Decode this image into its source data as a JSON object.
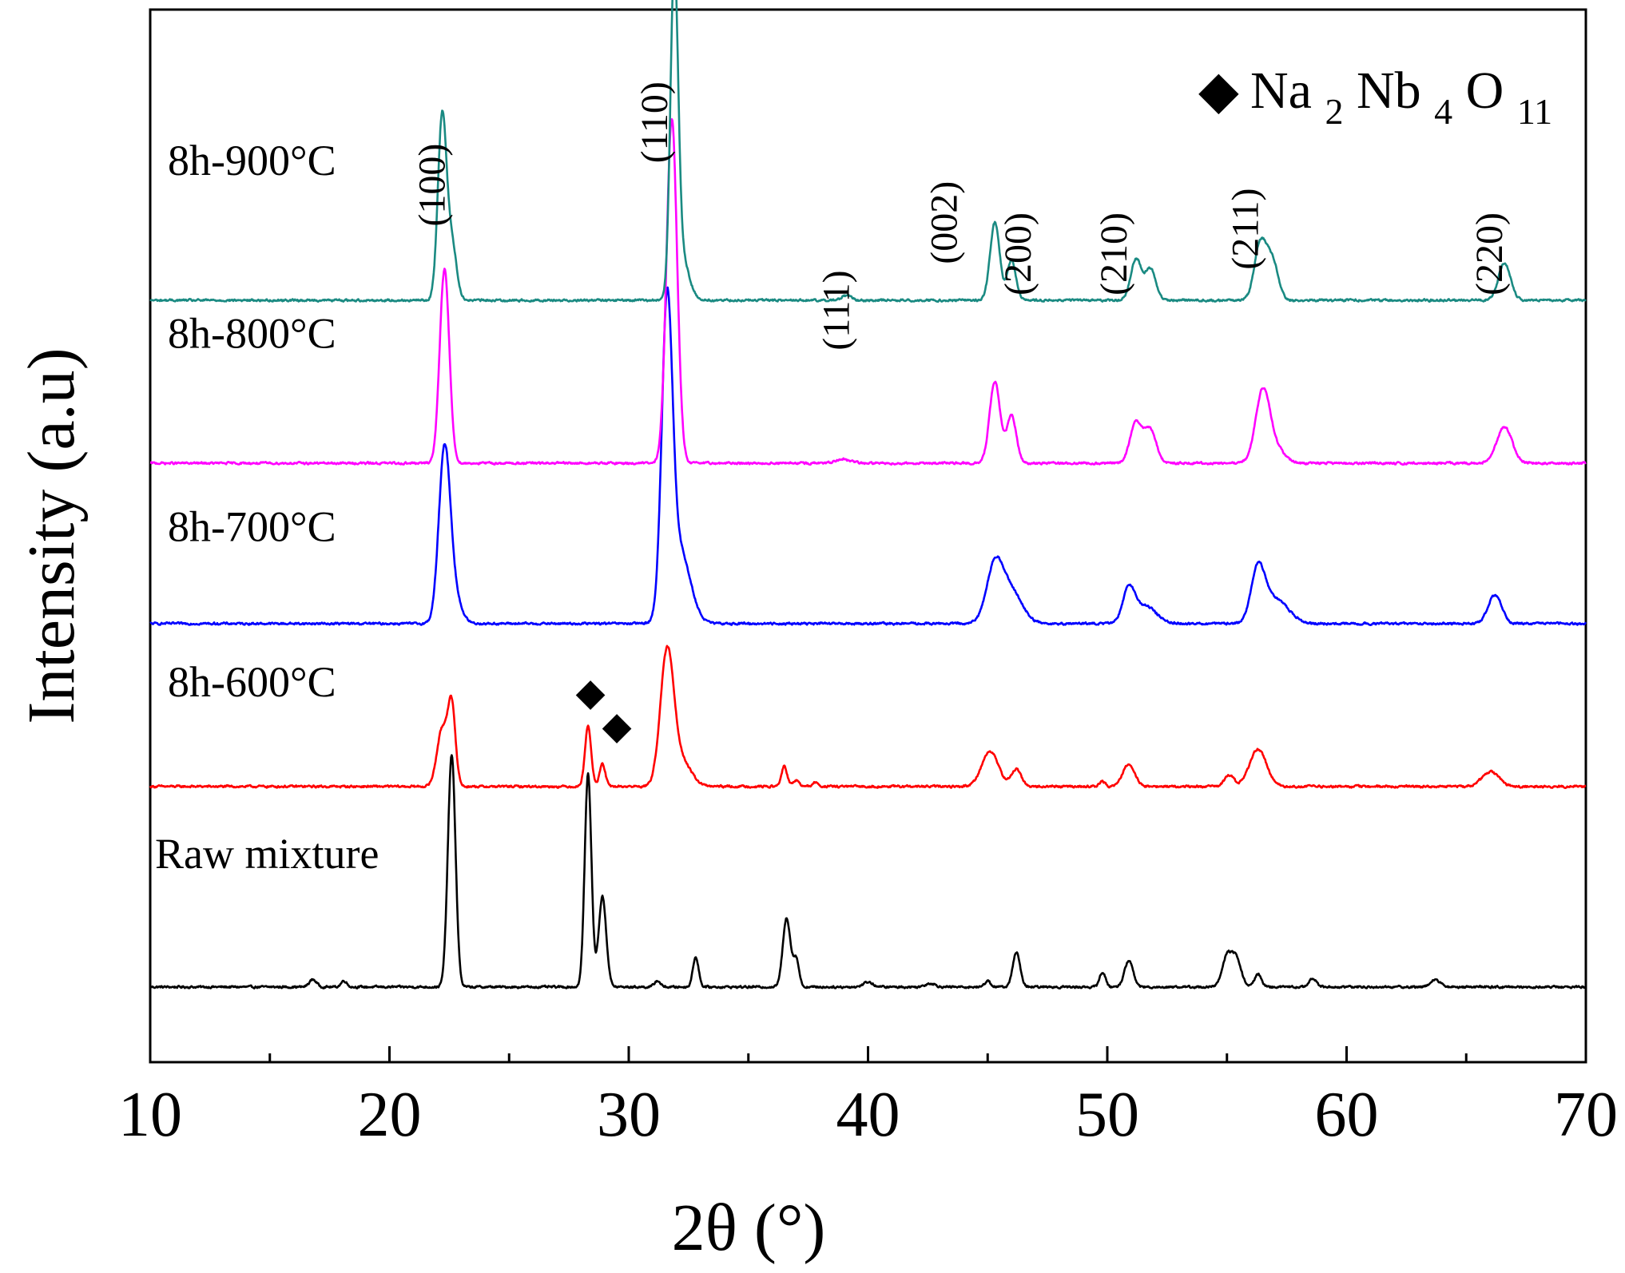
{
  "chart_data": {
    "type": "line",
    "title": "",
    "xlabel": "2θ (°)",
    "ylabel": "Intensity (a.u)",
    "xlim": [
      10,
      70
    ],
    "xticks": [
      10,
      20,
      30,
      40,
      50,
      60,
      70
    ],
    "xtick_labels": [
      "10",
      "20",
      "30",
      "40",
      "50",
      "60",
      "70"
    ],
    "yticks": [],
    "ylim": [
      0,
      8.4
    ],
    "grid": false,
    "legend": {
      "position": "top-right",
      "marker": "◆",
      "formula": [
        "Na",
        "2",
        "Nb",
        "4",
        "O",
        "11"
      ]
    },
    "series": [
      {
        "name": "Raw mixture",
        "color": "#000000",
        "baseline": 0.6,
        "peaks": [
          {
            "x": 16.8,
            "h": 0.06,
            "w": 0.15
          },
          {
            "x": 18.1,
            "h": 0.05,
            "w": 0.12
          },
          {
            "x": 22.6,
            "h": 1.85,
            "w": 0.16
          },
          {
            "x": 28.3,
            "h": 1.7,
            "w": 0.14
          },
          {
            "x": 28.9,
            "h": 0.72,
            "w": 0.16
          },
          {
            "x": 31.2,
            "h": 0.05,
            "w": 0.12
          },
          {
            "x": 32.8,
            "h": 0.24,
            "w": 0.12
          },
          {
            "x": 36.6,
            "h": 0.55,
            "w": 0.16
          },
          {
            "x": 37.0,
            "h": 0.22,
            "w": 0.12
          },
          {
            "x": 40.0,
            "h": 0.04,
            "w": 0.2
          },
          {
            "x": 42.6,
            "h": 0.03,
            "w": 0.2
          },
          {
            "x": 45.0,
            "h": 0.05,
            "w": 0.12
          },
          {
            "x": 46.2,
            "h": 0.28,
            "w": 0.15
          },
          {
            "x": 49.8,
            "h": 0.12,
            "w": 0.12
          },
          {
            "x": 50.9,
            "h": 0.21,
            "w": 0.18
          },
          {
            "x": 55.0,
            "h": 0.24,
            "w": 0.2
          },
          {
            "x": 55.4,
            "h": 0.22,
            "w": 0.2
          },
          {
            "x": 56.3,
            "h": 0.1,
            "w": 0.15
          },
          {
            "x": 58.6,
            "h": 0.07,
            "w": 0.15
          },
          {
            "x": 63.7,
            "h": 0.06,
            "w": 0.2
          }
        ]
      },
      {
        "name": "8h-600°C",
        "color": "#ff0000",
        "baseline": 2.2,
        "peaks": [
          {
            "x": 22.2,
            "h": 0.45,
            "w": 0.22
          },
          {
            "x": 22.6,
            "h": 0.62,
            "w": 0.16
          },
          {
            "x": 28.3,
            "h": 0.48,
            "w": 0.13
          },
          {
            "x": 28.9,
            "h": 0.18,
            "w": 0.12
          },
          {
            "x": 31.6,
            "h": 1.05,
            "w": 0.28
          },
          {
            "x": 32.2,
            "h": 0.2,
            "w": 0.4
          },
          {
            "x": 36.5,
            "h": 0.16,
            "w": 0.12
          },
          {
            "x": 37.0,
            "h": 0.05,
            "w": 0.12
          },
          {
            "x": 37.8,
            "h": 0.03,
            "w": 0.12
          },
          {
            "x": 45.1,
            "h": 0.28,
            "w": 0.35
          },
          {
            "x": 46.2,
            "h": 0.14,
            "w": 0.2
          },
          {
            "x": 49.8,
            "h": 0.04,
            "w": 0.12
          },
          {
            "x": 50.9,
            "h": 0.18,
            "w": 0.25
          },
          {
            "x": 55.1,
            "h": 0.09,
            "w": 0.2
          },
          {
            "x": 56.3,
            "h": 0.3,
            "w": 0.35
          },
          {
            "x": 66.0,
            "h": 0.12,
            "w": 0.35
          }
        ]
      },
      {
        "name": "8h-700°C",
        "color": "#0000ff",
        "baseline": 3.5,
        "peaks": [
          {
            "x": 22.3,
            "h": 1.35,
            "w": 0.24
          },
          {
            "x": 22.7,
            "h": 0.2,
            "w": 0.3
          },
          {
            "x": 31.6,
            "h": 2.35,
            "w": 0.22
          },
          {
            "x": 32.1,
            "h": 0.6,
            "w": 0.45
          },
          {
            "x": 45.3,
            "h": 0.45,
            "w": 0.35
          },
          {
            "x": 46.0,
            "h": 0.25,
            "w": 0.45
          },
          {
            "x": 50.9,
            "h": 0.27,
            "w": 0.25
          },
          {
            "x": 51.6,
            "h": 0.14,
            "w": 0.45
          },
          {
            "x": 56.3,
            "h": 0.4,
            "w": 0.28
          },
          {
            "x": 57.0,
            "h": 0.2,
            "w": 0.55
          },
          {
            "x": 66.2,
            "h": 0.23,
            "w": 0.28
          }
        ]
      },
      {
        "name": "8h-800°C",
        "color": "#ff00ff",
        "baseline": 4.78,
        "peaks": [
          {
            "x": 22.3,
            "h": 1.55,
            "w": 0.2
          },
          {
            "x": 31.8,
            "h": 2.75,
            "w": 0.22
          },
          {
            "x": 39.0,
            "h": 0.03,
            "w": 0.3
          },
          {
            "x": 45.3,
            "h": 0.65,
            "w": 0.22
          },
          {
            "x": 46.0,
            "h": 0.38,
            "w": 0.2
          },
          {
            "x": 51.2,
            "h": 0.32,
            "w": 0.25
          },
          {
            "x": 51.8,
            "h": 0.26,
            "w": 0.25
          },
          {
            "x": 56.5,
            "h": 0.58,
            "w": 0.3
          },
          {
            "x": 57.1,
            "h": 0.1,
            "w": 0.35
          },
          {
            "x": 66.6,
            "h": 0.29,
            "w": 0.32
          }
        ]
      },
      {
        "name": "8h-900°C",
        "color": "#1a8a82",
        "baseline": 6.08,
        "peaks": [
          {
            "x": 22.2,
            "h": 1.45,
            "w": 0.18
          },
          {
            "x": 22.6,
            "h": 0.45,
            "w": 0.2
          },
          {
            "x": 31.9,
            "h": 2.5,
            "w": 0.16
          },
          {
            "x": 32.2,
            "h": 0.35,
            "w": 0.3
          },
          {
            "x": 39.1,
            "h": 0.04,
            "w": 0.2
          },
          {
            "x": 45.3,
            "h": 0.62,
            "w": 0.2
          },
          {
            "x": 46.0,
            "h": 0.32,
            "w": 0.18
          },
          {
            "x": 51.2,
            "h": 0.33,
            "w": 0.22
          },
          {
            "x": 51.8,
            "h": 0.25,
            "w": 0.22
          },
          {
            "x": 56.4,
            "h": 0.45,
            "w": 0.25
          },
          {
            "x": 56.9,
            "h": 0.3,
            "w": 0.25
          },
          {
            "x": 66.6,
            "h": 0.3,
            "w": 0.25
          }
        ]
      }
    ],
    "series_label_offsets": [
      0.95,
      0.72,
      0.66,
      0.92,
      1.0
    ],
    "peak_labels": [
      {
        "text": "(100)",
        "x": 22.3,
        "y": 7.0
      },
      {
        "text": "(110)",
        "x": 31.6,
        "y": 7.5
      },
      {
        "text": "(111)",
        "x": 39.2,
        "y": 6.0
      },
      {
        "text": "(002)",
        "x": 43.7,
        "y": 6.7
      },
      {
        "text": "(200)",
        "x": 46.8,
        "y": 6.45
      },
      {
        "text": "(210)",
        "x": 50.8,
        "y": 6.45
      },
      {
        "text": "(211)",
        "x": 56.3,
        "y": 6.65
      },
      {
        "text": "(220)",
        "x": 66.5,
        "y": 6.45
      }
    ],
    "annotations": [
      {
        "symbol": "◆",
        "x": 28.4,
        "y": 2.85
      },
      {
        "symbol": "◆",
        "x": 29.5,
        "y": 2.58
      }
    ]
  }
}
